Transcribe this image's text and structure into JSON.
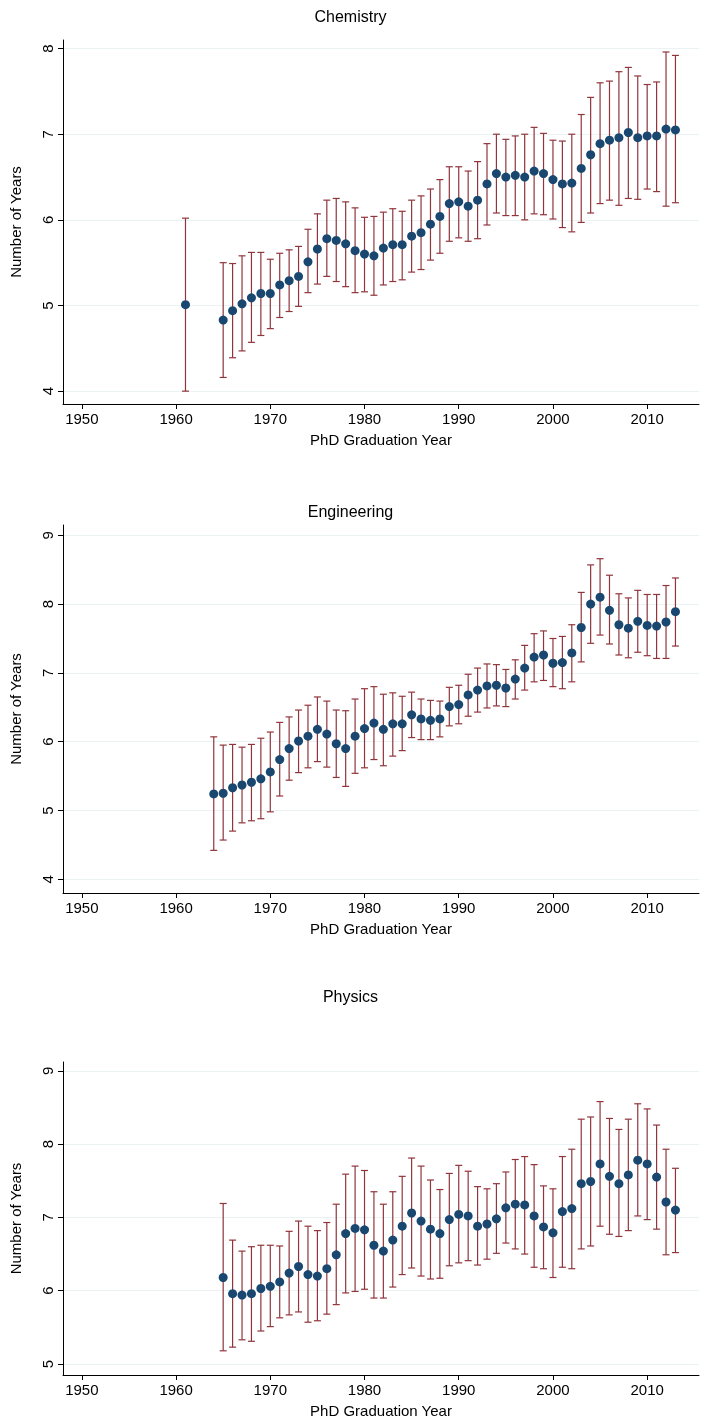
{
  "chart_data": [
    {
      "type": "scatter",
      "title": "Chemistry",
      "xlabel": "PhD Graduation Year",
      "ylabel": "Number of Years",
      "color": "#1a476f",
      "marker": "circle",
      "grid": "y",
      "xlim": [
        1948,
        2015.5
      ],
      "xticks": [
        1950,
        1960,
        1970,
        1980,
        1990,
        2000,
        2010
      ],
      "ylim": [
        3.85,
        8.1
      ],
      "yticks": [
        4,
        5,
        6,
        7,
        8
      ],
      "x": [
        1961,
        1965,
        1966,
        1967,
        1968,
        1969,
        1970,
        1971,
        1972,
        1973,
        1974,
        1975,
        1976,
        1977,
        1978,
        1979,
        1980,
        1981,
        1982,
        1983,
        1984,
        1985,
        1986,
        1987,
        1988,
        1989,
        1990,
        1991,
        1992,
        1993,
        1994,
        1995,
        1996,
        1997,
        1998,
        1999,
        2000,
        2001,
        2002,
        2003,
        2004,
        2005,
        2006,
        2007,
        2008,
        2009,
        2010,
        2011,
        2012,
        2013
      ],
      "values": [
        5.01,
        4.83,
        4.94,
        5.02,
        5.09,
        5.14,
        5.14,
        5.24,
        5.29,
        5.34,
        5.51,
        5.66,
        5.78,
        5.76,
        5.72,
        5.64,
        5.6,
        5.58,
        5.67,
        5.71,
        5.71,
        5.81,
        5.85,
        5.95,
        6.04,
        6.19,
        6.21,
        6.16,
        6.23,
        6.42,
        6.54,
        6.5,
        6.52,
        6.5,
        6.57,
        6.54,
        6.47,
        6.42,
        6.43,
        6.6,
        6.76,
        6.89,
        6.93,
        6.96,
        7.02,
        6.96,
        6.98,
        6.98,
        7.06,
        7.05
      ],
      "errors": [
        [
          4.0,
          6.02
        ],
        [
          4.16,
          5.5
        ],
        [
          4.39,
          5.49
        ],
        [
          4.47,
          5.58
        ],
        [
          4.57,
          5.62
        ],
        [
          4.65,
          5.62
        ],
        [
          4.73,
          5.54
        ],
        [
          4.86,
          5.61
        ],
        [
          4.93,
          5.65
        ],
        [
          4.99,
          5.69
        ],
        [
          5.15,
          5.89
        ],
        [
          5.25,
          6.07
        ],
        [
          5.34,
          6.23
        ],
        [
          5.28,
          6.25
        ],
        [
          5.22,
          6.21
        ],
        [
          5.15,
          6.14
        ],
        [
          5.16,
          6.03
        ],
        [
          5.12,
          6.04
        ],
        [
          5.24,
          6.09
        ],
        [
          5.28,
          6.13
        ],
        [
          5.3,
          6.1
        ],
        [
          5.39,
          6.23
        ],
        [
          5.42,
          6.28
        ],
        [
          5.53,
          6.36
        ],
        [
          5.61,
          6.47
        ],
        [
          5.75,
          6.62
        ],
        [
          5.79,
          6.62
        ],
        [
          5.75,
          6.57
        ],
        [
          5.78,
          6.68
        ],
        [
          5.94,
          6.89
        ],
        [
          6.08,
          7.0
        ],
        [
          6.05,
          6.94
        ],
        [
          6.05,
          6.98
        ],
        [
          6.0,
          7.0
        ],
        [
          6.07,
          7.08
        ],
        [
          6.06,
          7.01
        ],
        [
          6.01,
          6.93
        ],
        [
          5.91,
          6.92
        ],
        [
          5.86,
          7.0
        ],
        [
          5.97,
          7.23
        ],
        [
          6.08,
          7.43
        ],
        [
          6.19,
          7.6
        ],
        [
          6.23,
          7.62
        ],
        [
          6.17,
          7.73
        ],
        [
          6.25,
          7.78
        ],
        [
          6.24,
          7.68
        ],
        [
          6.36,
          7.58
        ],
        [
          6.33,
          7.61
        ],
        [
          6.16,
          7.96
        ],
        [
          6.2,
          7.92
        ]
      ]
    },
    {
      "type": "scatter",
      "title": "Engineering",
      "xlabel": "PhD Graduation Year",
      "ylabel": "Number of Years",
      "color": "#1a476f",
      "marker": "circle",
      "grid": "y",
      "xlim": [
        1948,
        2015.5
      ],
      "xticks": [
        1950,
        1960,
        1970,
        1980,
        1990,
        2000,
        2010
      ],
      "ylim": [
        3.8,
        9.15
      ],
      "yticks": [
        4,
        5,
        6,
        7,
        8,
        9
      ],
      "x": [
        1964,
        1965,
        1966,
        1967,
        1968,
        1969,
        1970,
        1971,
        1972,
        1973,
        1974,
        1975,
        1976,
        1977,
        1978,
        1979,
        1980,
        1981,
        1982,
        1983,
        1984,
        1985,
        1986,
        1987,
        1988,
        1989,
        1990,
        1991,
        1992,
        1993,
        1994,
        1995,
        1996,
        1997,
        1998,
        1999,
        2000,
        2001,
        2002,
        2003,
        2004,
        2005,
        2006,
        2007,
        2008,
        2009,
        2010,
        2011,
        2012,
        2013
      ],
      "values": [
        5.24,
        5.25,
        5.33,
        5.37,
        5.41,
        5.46,
        5.56,
        5.74,
        5.9,
        6.01,
        6.08,
        6.18,
        6.11,
        5.97,
        5.9,
        6.08,
        6.19,
        6.27,
        6.18,
        6.26,
        6.26,
        6.39,
        6.33,
        6.31,
        6.33,
        6.51,
        6.54,
        6.68,
        6.75,
        6.81,
        6.82,
        6.78,
        6.91,
        7.07,
        7.23,
        7.26,
        7.14,
        7.15,
        7.29,
        7.66,
        8.0,
        8.1,
        7.91,
        7.7,
        7.65,
        7.75,
        7.69,
        7.68,
        7.74,
        7.89
      ],
      "errors": [
        [
          4.42,
          6.07
        ],
        [
          4.57,
          5.95
        ],
        [
          4.7,
          5.96
        ],
        [
          4.82,
          5.92
        ],
        [
          4.85,
          5.96
        ],
        [
          4.88,
          6.05
        ],
        [
          4.98,
          6.14
        ],
        [
          5.21,
          6.28
        ],
        [
          5.44,
          6.36
        ],
        [
          5.55,
          6.46
        ],
        [
          5.62,
          6.53
        ],
        [
          5.71,
          6.65
        ],
        [
          5.63,
          6.59
        ],
        [
          5.48,
          6.46
        ],
        [
          5.35,
          6.45
        ],
        [
          5.54,
          6.62
        ],
        [
          5.62,
          6.77
        ],
        [
          5.74,
          6.8
        ],
        [
          5.65,
          6.69
        ],
        [
          5.79,
          6.71
        ],
        [
          5.87,
          6.66
        ],
        [
          6.06,
          6.72
        ],
        [
          6.03,
          6.62
        ],
        [
          6.03,
          6.6
        ],
        [
          6.07,
          6.59
        ],
        [
          6.23,
          6.79
        ],
        [
          6.26,
          6.82
        ],
        [
          6.37,
          6.98
        ],
        [
          6.43,
          7.07
        ],
        [
          6.49,
          7.13
        ],
        [
          6.52,
          7.12
        ],
        [
          6.51,
          7.05
        ],
        [
          6.62,
          7.19
        ],
        [
          6.75,
          7.4
        ],
        [
          6.87,
          7.57
        ],
        [
          6.89,
          7.61
        ],
        [
          6.8,
          7.5
        ],
        [
          6.77,
          7.53
        ],
        [
          6.87,
          7.7
        ],
        [
          7.16,
          8.17
        ],
        [
          7.43,
          8.57
        ],
        [
          7.55,
          8.66
        ],
        [
          7.42,
          8.42
        ],
        [
          7.26,
          8.15
        ],
        [
          7.22,
          8.09
        ],
        [
          7.3,
          8.2
        ],
        [
          7.25,
          8.14
        ],
        [
          7.21,
          8.14
        ],
        [
          7.21,
          8.27
        ],
        [
          7.39,
          8.38
        ]
      ]
    },
    {
      "type": "scatter",
      "title": "Physics",
      "xlabel": "PhD Graduation Year",
      "ylabel": "Number of Years",
      "color": "#1a476f",
      "marker": "circle",
      "grid": "y",
      "xlim": [
        1948,
        2015.5
      ],
      "xticks": [
        1950,
        1960,
        1970,
        1980,
        1990,
        2000,
        2010
      ],
      "ylim": [
        4.85,
        9.12
      ],
      "yticks": [
        5,
        6,
        7,
        8,
        9
      ],
      "x": [
        1965,
        1966,
        1967,
        1968,
        1969,
        1970,
        1971,
        1972,
        1973,
        1974,
        1975,
        1976,
        1977,
        1978,
        1979,
        1980,
        1981,
        1982,
        1983,
        1984,
        1985,
        1986,
        1987,
        1988,
        1989,
        1990,
        1991,
        1992,
        1993,
        1994,
        1995,
        1996,
        1997,
        1998,
        1999,
        2000,
        2001,
        2002,
        2003,
        2004,
        2005,
        2006,
        2007,
        2008,
        2009,
        2010,
        2011,
        2012,
        2013
      ],
      "values": [
        6.18,
        5.96,
        5.94,
        5.96,
        6.03,
        6.06,
        6.12,
        6.24,
        6.33,
        6.22,
        6.2,
        6.3,
        6.49,
        6.78,
        6.85,
        6.83,
        6.62,
        6.54,
        6.69,
        6.88,
        7.06,
        6.95,
        6.84,
        6.78,
        6.97,
        7.04,
        7.02,
        6.88,
        6.91,
        6.98,
        7.13,
        7.18,
        7.17,
        7.02,
        6.87,
        6.79,
        7.08,
        7.12,
        7.46,
        7.49,
        7.73,
        7.56,
        7.46,
        7.58,
        7.78,
        7.73,
        7.55,
        7.21,
        7.1
      ],
      "errors": [
        [
          5.18,
          7.19
        ],
        [
          5.23,
          6.69
        ],
        [
          5.33,
          6.54
        ],
        [
          5.31,
          6.6
        ],
        [
          5.45,
          6.62
        ],
        [
          5.51,
          6.62
        ],
        [
          5.63,
          6.61
        ],
        [
          5.67,
          6.81
        ],
        [
          5.71,
          6.95
        ],
        [
          5.57,
          6.88
        ],
        [
          5.59,
          6.82
        ],
        [
          5.68,
          6.93
        ],
        [
          5.81,
          7.18
        ],
        [
          5.97,
          7.59
        ],
        [
          5.99,
          7.7
        ],
        [
          6.02,
          7.64
        ],
        [
          5.9,
          7.35
        ],
        [
          5.9,
          7.18
        ],
        [
          6.05,
          7.35
        ],
        [
          6.22,
          7.56
        ],
        [
          6.31,
          7.81
        ],
        [
          6.2,
          7.7
        ],
        [
          6.16,
          7.51
        ],
        [
          6.17,
          7.38
        ],
        [
          6.34,
          7.6
        ],
        [
          6.38,
          7.71
        ],
        [
          6.41,
          7.63
        ],
        [
          6.35,
          7.42
        ],
        [
          6.43,
          7.39
        ],
        [
          6.51,
          7.46
        ],
        [
          6.65,
          7.62
        ],
        [
          6.57,
          7.79
        ],
        [
          6.5,
          7.83
        ],
        [
          6.32,
          7.72
        ],
        [
          6.3,
          7.43
        ],
        [
          6.18,
          7.39
        ],
        [
          6.32,
          7.83
        ],
        [
          6.3,
          7.93
        ],
        [
          6.57,
          8.34
        ],
        [
          6.61,
          8.37
        ],
        [
          6.88,
          8.58
        ],
        [
          6.77,
          8.35
        ],
        [
          6.74,
          8.2
        ],
        [
          6.82,
          8.34
        ],
        [
          7.02,
          8.55
        ],
        [
          6.97,
          8.48
        ],
        [
          6.84,
          8.26
        ],
        [
          6.49,
          7.93
        ],
        [
          6.52,
          7.67
        ]
      ]
    }
  ]
}
